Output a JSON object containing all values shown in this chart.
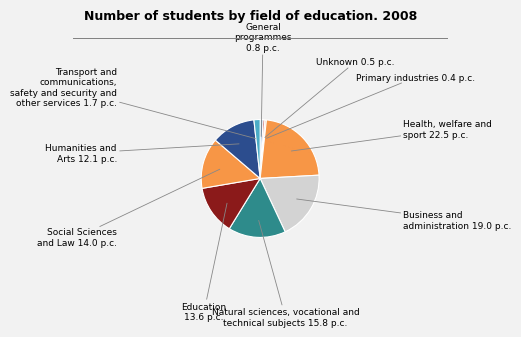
{
  "title": "Number of students by field of education. 2008",
  "slices": [
    {
      "label": "General\nprogrammes\n0.8 p.c.",
      "value": 0.8,
      "color": "#5b9bd5"
    },
    {
      "label": "Unknown 0.5 p.c.",
      "value": 0.5,
      "color": "#c0504d"
    },
    {
      "label": "Primary industries 0.4 p.c.",
      "value": 0.4,
      "color": "#f79646"
    },
    {
      "label": "Health, welfare and\nsport 22.5 p.c.",
      "value": 22.5,
      "color": "#f79646"
    },
    {
      "label": "Business and\nadministration 19.0 p.c.",
      "value": 19.0,
      "color": "#d3d3d3"
    },
    {
      "label": "Natural sciences, vocational and\ntechnical subjects 15.8 p.c.",
      "value": 15.8,
      "color": "#2e8b8b"
    },
    {
      "label": "Education\n13.6 p.c.",
      "value": 13.6,
      "color": "#8b1a1a"
    },
    {
      "label": "Social Sciences\nand Law 14.0 p.c.",
      "value": 14.0,
      "color": "#f79646"
    },
    {
      "label": "Humanities and\nArts 12.1 p.c.",
      "value": 12.1,
      "color": "#2c4d8e"
    },
    {
      "label": "Transport and\ncommunications,\nsafety and security and\nother services 1.7 p.c.",
      "value": 1.7,
      "color": "#4bacc6"
    }
  ],
  "start_angle": 90,
  "background_color": "#f2f2f2",
  "title_fontsize": 9,
  "label_fontsize": 6.5
}
